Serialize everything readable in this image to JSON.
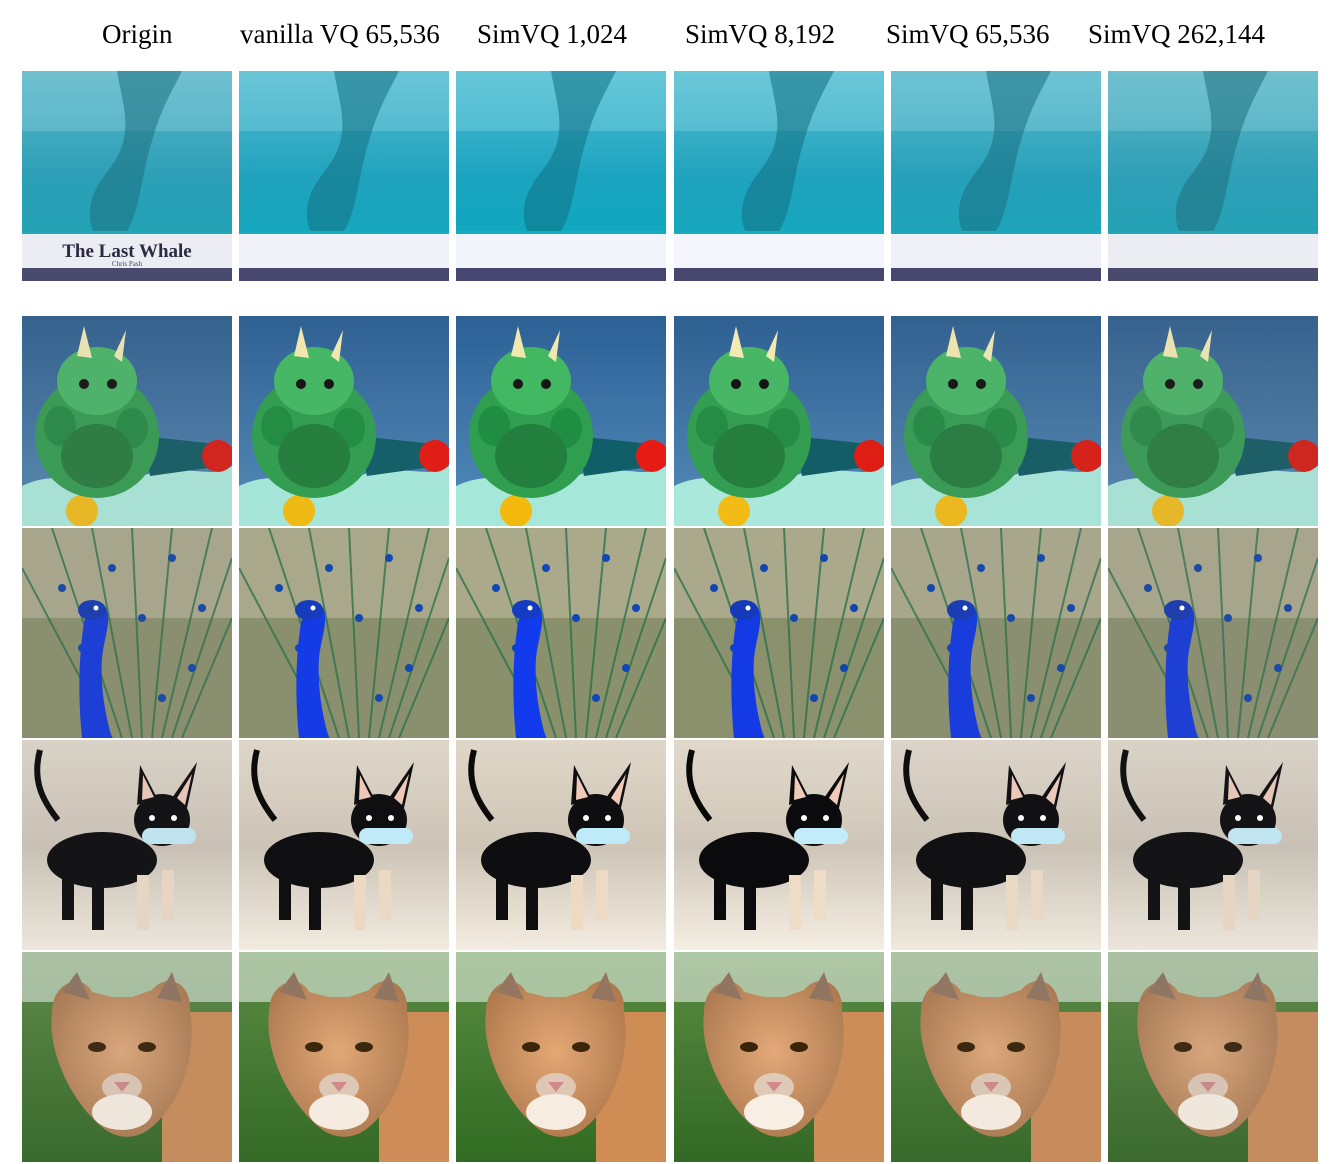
{
  "columns": [
    {
      "key": "origin",
      "label": "Origin"
    },
    {
      "key": "vanilla_vq_65536",
      "label": "vanilla VQ 65,536"
    },
    {
      "key": "simvq_1024",
      "label": "SimVQ 1,024"
    },
    {
      "key": "simvq_8192",
      "label": "SimVQ 8,192"
    },
    {
      "key": "simvq_65536",
      "label": "SimVQ 65,536"
    },
    {
      "key": "simvq_262144",
      "label": "SimVQ 262,144"
    }
  ],
  "rows": [
    {
      "subject": "whale",
      "banner": {
        "title": "The Last Whale",
        "author": "Chris Pash"
      }
    },
    {
      "subject": "triceratops-toy"
    },
    {
      "subject": "peacock"
    },
    {
      "subject": "chihuahua-with-bone"
    },
    {
      "subject": "cougar"
    }
  ]
}
